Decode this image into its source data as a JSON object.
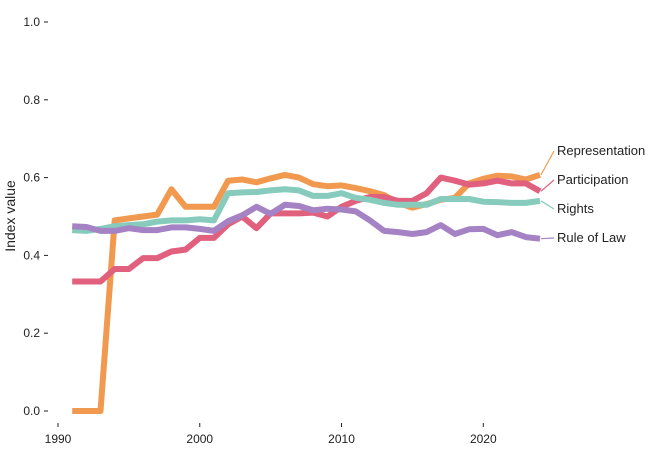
{
  "chart_data": {
    "type": "line",
    "title": "",
    "xlabel": "",
    "ylabel": "Index value",
    "xlim": [
      1990,
      2024
    ],
    "ylim": [
      0,
      1
    ],
    "x_ticks": [
      1990,
      2000,
      2010,
      2020
    ],
    "y_ticks": [
      {
        "value": 0,
        "label": "0.0"
      },
      {
        "value": 0.2,
        "label": "0.2"
      },
      {
        "value": 0.4,
        "label": "0.4"
      },
      {
        "value": 0.6,
        "label": "0.6"
      },
      {
        "value": 0.8,
        "label": "0.8"
      },
      {
        "value": 1.0,
        "label": "1.0"
      }
    ],
    "grid": false,
    "legend": "direct labels at right end of lines",
    "x": [
      1991,
      1992,
      1993,
      1994,
      1995,
      1996,
      1997,
      1998,
      1999,
      2000,
      2001,
      2002,
      2003,
      2004,
      2005,
      2006,
      2007,
      2008,
      2009,
      2010,
      2011,
      2012,
      2013,
      2014,
      2015,
      2016,
      2017,
      2018,
      2019,
      2020,
      2021,
      2022,
      2023,
      2024
    ],
    "series": [
      {
        "name": "Representation",
        "color": "#F0994F",
        "values": [
          0.0,
          0.0,
          0.0,
          0.49,
          0.495,
          0.5,
          0.505,
          0.57,
          0.525,
          0.525,
          0.525,
          0.592,
          0.595,
          0.588,
          0.598,
          0.607,
          0.6,
          0.583,
          0.578,
          0.58,
          0.573,
          0.565,
          0.555,
          0.535,
          0.523,
          0.532,
          0.543,
          0.548,
          0.585,
          0.597,
          0.605,
          0.603,
          0.595,
          0.607
        ]
      },
      {
        "name": "Participation",
        "color": "#E0607E",
        "values": [
          0.333,
          0.333,
          0.333,
          0.365,
          0.365,
          0.393,
          0.393,
          0.41,
          0.415,
          0.445,
          0.445,
          0.48,
          0.5,
          0.47,
          0.508,
          0.508,
          0.508,
          0.51,
          0.5,
          0.525,
          0.54,
          0.55,
          0.55,
          0.54,
          0.54,
          0.56,
          0.6,
          0.592,
          0.582,
          0.585,
          0.592,
          0.585,
          0.585,
          0.565
        ]
      },
      {
        "name": "Rights",
        "color": "#86CBBC",
        "values": [
          0.465,
          0.463,
          0.468,
          0.475,
          0.478,
          0.48,
          0.487,
          0.49,
          0.49,
          0.493,
          0.49,
          0.56,
          0.562,
          0.563,
          0.567,
          0.57,
          0.567,
          0.553,
          0.553,
          0.56,
          0.548,
          0.543,
          0.535,
          0.53,
          0.53,
          0.53,
          0.545,
          0.545,
          0.545,
          0.538,
          0.537,
          0.535,
          0.535,
          0.54
        ]
      },
      {
        "name": "Rule of Law",
        "color": "#A582C4",
        "values": [
          0.475,
          0.473,
          0.463,
          0.463,
          0.47,
          0.465,
          0.465,
          0.472,
          0.472,
          0.468,
          0.463,
          0.488,
          0.503,
          0.525,
          0.507,
          0.53,
          0.527,
          0.516,
          0.52,
          0.518,
          0.513,
          0.49,
          0.463,
          0.46,
          0.455,
          0.46,
          0.478,
          0.455,
          0.467,
          0.468,
          0.452,
          0.46,
          0.447,
          0.443
        ]
      }
    ]
  }
}
